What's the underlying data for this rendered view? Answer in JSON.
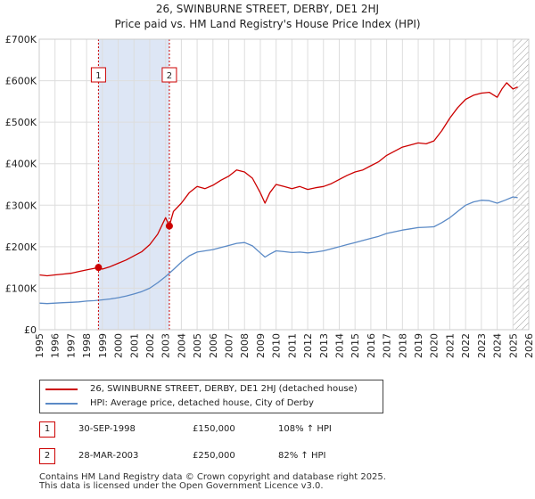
{
  "title": "26, SWINBURNE STREET, DERBY, DE1 2HJ",
  "subtitle": "Price paid vs. HM Land Registry's House Price Index (HPI)",
  "colors": {
    "property": "#cc0000",
    "hpi": "#5b8ac6",
    "shade": "#dde6f5",
    "grid": "#dddddd"
  },
  "chart_data": {
    "type": "line",
    "title": "26, SWINBURNE STREET, DERBY, DE1 2HJ",
    "xlabel": "",
    "ylabel": "",
    "xlim": [
      1995,
      2026
    ],
    "ylim": [
      0,
      700000
    ],
    "ytick_values": [
      0,
      100000,
      200000,
      300000,
      400000,
      500000,
      600000,
      700000
    ],
    "ytick_labels": [
      "£0",
      "£100K",
      "£200K",
      "£300K",
      "£400K",
      "£500K",
      "£600K",
      "£700K"
    ],
    "xtick_labels": [
      "1995",
      "1996",
      "1997",
      "1998",
      "1999",
      "2000",
      "2001",
      "2002",
      "2003",
      "2004",
      "2005",
      "2006",
      "2007",
      "2008",
      "2009",
      "2010",
      "2011",
      "2012",
      "2013",
      "2014",
      "2015",
      "2016",
      "2017",
      "2018",
      "2019",
      "2020",
      "2021",
      "2022",
      "2023",
      "2024",
      "2025",
      "2026"
    ],
    "grid": true,
    "series": [
      {
        "name": "26, SWINBURNE STREET, DERBY, DE1 2HJ (detached house)",
        "color": "#cc0000",
        "x": [
          1995.0,
          1995.5,
          1996.0,
          1996.5,
          1997.0,
          1997.5,
          1998.0,
          1998.5,
          1998.75,
          1999.0,
          1999.5,
          2000.0,
          2000.5,
          2001.0,
          2001.5,
          2002.0,
          2002.5,
          2003.0,
          2003.24,
          2003.5,
          2004.0,
          2004.5,
          2005.0,
          2005.5,
          2006.0,
          2006.5,
          2007.0,
          2007.5,
          2008.0,
          2008.5,
          2009.0,
          2009.3,
          2009.6,
          2010.0,
          2010.5,
          2011.0,
          2011.5,
          2012.0,
          2012.5,
          2013.0,
          2013.5,
          2014.0,
          2014.5,
          2015.0,
          2015.5,
          2016.0,
          2016.5,
          2017.0,
          2017.5,
          2018.0,
          2018.5,
          2019.0,
          2019.5,
          2020.0,
          2020.5,
          2021.0,
          2021.5,
          2022.0,
          2022.5,
          2023.0,
          2023.5,
          2024.0,
          2024.3,
          2024.6,
          2025.0,
          2025.3
        ],
        "values": [
          132000,
          130000,
          132000,
          134000,
          136000,
          140000,
          144000,
          148000,
          150000,
          146000,
          152000,
          160000,
          168000,
          178000,
          188000,
          205000,
          230000,
          270000,
          250000,
          285000,
          305000,
          330000,
          345000,
          340000,
          348000,
          360000,
          370000,
          385000,
          380000,
          365000,
          330000,
          305000,
          330000,
          350000,
          345000,
          340000,
          345000,
          338000,
          342000,
          345000,
          352000,
          362000,
          372000,
          380000,
          385000,
          395000,
          405000,
          420000,
          430000,
          440000,
          445000,
          450000,
          448000,
          455000,
          480000,
          510000,
          535000,
          555000,
          565000,
          570000,
          572000,
          560000,
          580000,
          595000,
          580000,
          585000
        ]
      },
      {
        "name": "HPI: Average price, detached house, City of Derby",
        "color": "#5b8ac6",
        "x": [
          1995.0,
          1995.5,
          1996.0,
          1996.5,
          1997.0,
          1997.5,
          1998.0,
          1998.5,
          1999.0,
          1999.5,
          2000.0,
          2000.5,
          2001.0,
          2001.5,
          2002.0,
          2002.5,
          2003.0,
          2003.5,
          2004.0,
          2004.5,
          2005.0,
          2005.5,
          2006.0,
          2006.5,
          2007.0,
          2007.5,
          2008.0,
          2008.5,
          2009.0,
          2009.3,
          2009.6,
          2010.0,
          2010.5,
          2011.0,
          2011.5,
          2012.0,
          2012.5,
          2013.0,
          2013.5,
          2014.0,
          2014.5,
          2015.0,
          2015.5,
          2016.0,
          2016.5,
          2017.0,
          2017.5,
          2018.0,
          2018.5,
          2019.0,
          2019.5,
          2020.0,
          2020.5,
          2021.0,
          2021.5,
          2022.0,
          2022.5,
          2023.0,
          2023.5,
          2024.0,
          2024.5,
          2025.0,
          2025.3
        ],
        "values": [
          64000,
          63000,
          64000,
          65000,
          66000,
          67000,
          69000,
          70000,
          72000,
          74000,
          77000,
          81000,
          86000,
          92000,
          100000,
          113000,
          128000,
          145000,
          163000,
          178000,
          187000,
          190000,
          193000,
          198000,
          203000,
          208000,
          210000,
          202000,
          185000,
          175000,
          182000,
          190000,
          188000,
          186000,
          187000,
          185000,
          187000,
          190000,
          195000,
          200000,
          205000,
          210000,
          215000,
          220000,
          225000,
          232000,
          236000,
          240000,
          243000,
          246000,
          247000,
          248000,
          258000,
          270000,
          285000,
          300000,
          308000,
          312000,
          311000,
          305000,
          312000,
          320000,
          318000
        ]
      }
    ],
    "shaded_range": [
      1998.75,
      2003.24
    ],
    "annotations": [
      {
        "label": "1",
        "x": 1998.75,
        "y": 150000
      },
      {
        "label": "2",
        "x": 2003.24,
        "y": 250000
      }
    ],
    "future_hatch_from": 2025.0
  },
  "legend": {
    "items": [
      {
        "label": "26, SWINBURNE STREET, DERBY, DE1 2HJ (detached house)",
        "color": "#cc0000"
      },
      {
        "label": "HPI: Average price, detached house, City of Derby",
        "color": "#5b8ac6"
      }
    ]
  },
  "transactions": [
    {
      "num": "1",
      "date": "30-SEP-1998",
      "price": "£150,000",
      "hpi": "108% ↑ HPI"
    },
    {
      "num": "2",
      "date": "28-MAR-2003",
      "price": "£250,000",
      "hpi": "82% ↑ HPI"
    }
  ],
  "footer": {
    "line1": "Contains HM Land Registry data © Crown copyright and database right 2025.",
    "line2": "This data is licensed under the Open Government Licence v3.0."
  }
}
